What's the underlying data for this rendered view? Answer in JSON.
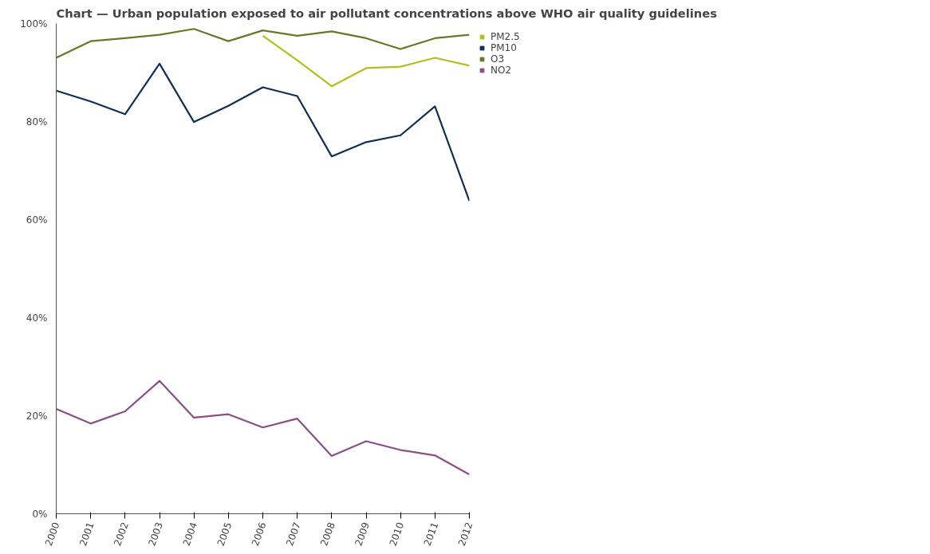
{
  "chart_data": {
    "type": "line",
    "title": "Chart — Urban population exposed to air pollutant concentrations above WHO air quality guidelines",
    "categories": [
      "2000",
      "2001",
      "2002",
      "2003",
      "2004",
      "2005",
      "2006",
      "2007",
      "2008",
      "2009",
      "2010",
      "2011",
      "2012"
    ],
    "series": [
      {
        "name": "PM2.5",
        "color": "#b2bf1f",
        "values": [
          null,
          null,
          null,
          null,
          null,
          null,
          97.5,
          92.5,
          87.2,
          90.9,
          91.2,
          93.0,
          91.4
        ]
      },
      {
        "name": "PM10",
        "color": "#0f2f57",
        "values": [
          86.3,
          84.1,
          81.5,
          91.8,
          79.9,
          83.2,
          87.0,
          85.2,
          72.9,
          75.8,
          77.2,
          83.1,
          63.8
        ]
      },
      {
        "name": "O3",
        "color": "#6b7728",
        "values": [
          93.0,
          96.4,
          97.0,
          97.7,
          98.9,
          96.4,
          98.6,
          97.5,
          98.4,
          97.0,
          94.8,
          97.0,
          97.7
        ]
      },
      {
        "name": "NO2",
        "color": "#8a4f87",
        "values": [
          21.4,
          18.4,
          20.9,
          27.1,
          19.6,
          20.3,
          17.6,
          19.4,
          11.8,
          14.8,
          13.0,
          11.9,
          8.0
        ]
      }
    ],
    "ylim": [
      0,
      100
    ],
    "yticks": [
      {
        "value": 0,
        "label": "0%"
      },
      {
        "value": 20,
        "label": "20%"
      },
      {
        "value": 40,
        "label": "40%"
      },
      {
        "value": 60,
        "label": "60%"
      },
      {
        "value": 80,
        "label": "80%"
      },
      {
        "value": 100,
        "label": "100%"
      }
    ],
    "grid": false,
    "legend": "top right",
    "line_style": "solid"
  }
}
